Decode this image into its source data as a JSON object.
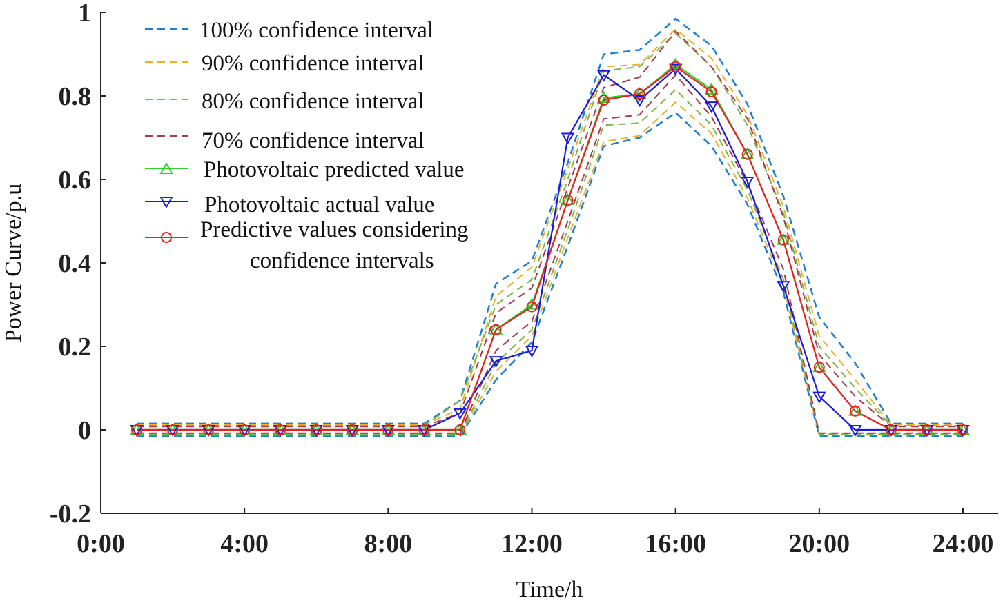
{
  "chart_data": {
    "type": "line",
    "title": "",
    "xlabel": "Time/h",
    "ylabel": "Power Curve/p.u",
    "xlim": [
      0,
      24
    ],
    "ylim": [
      -0.2,
      1
    ],
    "x_ticks": [
      0,
      4,
      8,
      12,
      16,
      20,
      24
    ],
    "x_tick_labels": [
      "0:00",
      "4:00",
      "8:00",
      "12:00",
      "16:00",
      "20:00",
      "24:00"
    ],
    "y_ticks": [
      -0.2,
      0,
      0.2,
      0.4,
      0.6,
      0.8,
      1
    ],
    "y_tick_labels": [
      "-0.2",
      "0",
      "0.2",
      "0.4",
      "0.6",
      "0.8",
      "1"
    ],
    "grid": false,
    "legend_position": "top-left",
    "x": [
      1,
      2,
      3,
      4,
      5,
      6,
      7,
      8,
      9,
      10,
      11,
      12,
      13,
      14,
      15,
      16,
      17,
      18,
      19,
      20,
      21,
      22,
      23,
      24
    ],
    "series": [
      {
        "name": "100% confidence interval",
        "kind": "band",
        "style": "dashed",
        "color": "#1f7fcf",
        "upper": [
          0.015,
          0.015,
          0.015,
          0.015,
          0.015,
          0.015,
          0.015,
          0.015,
          0.015,
          0.07,
          0.35,
          0.405,
          0.64,
          0.9,
          0.91,
          0.985,
          0.92,
          0.78,
          0.56,
          0.27,
          0.16,
          0.015,
          0.015,
          0.015
        ],
        "lower": [
          -0.015,
          -0.015,
          -0.015,
          -0.015,
          -0.015,
          -0.015,
          -0.015,
          -0.015,
          -0.015,
          -0.015,
          0.12,
          0.21,
          0.44,
          0.68,
          0.7,
          0.76,
          0.68,
          0.54,
          0.33,
          -0.015,
          -0.015,
          -0.015,
          -0.015,
          -0.015
        ]
      },
      {
        "name": "90% confidence interval",
        "kind": "band",
        "style": "dashed",
        "color": "#e8b030",
        "upper": [
          0.012,
          0.012,
          0.012,
          0.012,
          0.012,
          0.012,
          0.012,
          0.012,
          0.012,
          0.05,
          0.32,
          0.39,
          0.625,
          0.87,
          0.875,
          0.96,
          0.89,
          0.755,
          0.535,
          0.225,
          0.12,
          0.012,
          0.012,
          0.012
        ],
        "lower": [
          -0.012,
          -0.012,
          -0.012,
          -0.012,
          -0.012,
          -0.012,
          -0.012,
          -0.012,
          -0.012,
          -0.012,
          0.14,
          0.225,
          0.46,
          0.69,
          0.705,
          0.785,
          0.71,
          0.555,
          0.345,
          -0.012,
          -0.012,
          -0.012,
          -0.012,
          -0.012
        ]
      },
      {
        "name": "80% confidence interval",
        "kind": "band",
        "style": "dashed",
        "color": "#7ab648",
        "upper": [
          0.01,
          0.01,
          0.01,
          0.01,
          0.01,
          0.01,
          0.01,
          0.01,
          0.01,
          0.07,
          0.3,
          0.36,
          0.6,
          0.86,
          0.87,
          0.95,
          0.87,
          0.73,
          0.52,
          0.2,
          0.1,
          0.01,
          0.01,
          0.01
        ],
        "lower": [
          -0.01,
          -0.01,
          -0.01,
          -0.01,
          -0.01,
          -0.01,
          -0.01,
          -0.01,
          -0.01,
          -0.01,
          0.16,
          0.24,
          0.48,
          0.73,
          0.735,
          0.815,
          0.73,
          0.575,
          0.36,
          -0.01,
          -0.01,
          -0.01,
          -0.01,
          -0.01
        ]
      },
      {
        "name": "70% confidence interval",
        "kind": "band",
        "style": "dashed",
        "color": "#a83a4e",
        "upper": [
          0.008,
          0.008,
          0.008,
          0.008,
          0.008,
          0.008,
          0.008,
          0.008,
          0.008,
          0.04,
          0.28,
          0.34,
          0.58,
          0.82,
          0.845,
          0.955,
          0.87,
          0.745,
          0.51,
          0.18,
          0.08,
          0.008,
          0.008,
          0.008
        ],
        "lower": [
          -0.008,
          -0.008,
          -0.008,
          -0.008,
          -0.008,
          -0.008,
          -0.008,
          -0.008,
          -0.008,
          -0.008,
          0.19,
          0.26,
          0.5,
          0.745,
          0.755,
          0.85,
          0.75,
          0.59,
          0.385,
          -0.008,
          -0.008,
          -0.008,
          -0.008,
          -0.008
        ]
      },
      {
        "name": "Photovoltaic predicted value",
        "kind": "line",
        "marker": "triangle-up",
        "color": "#2ad22a",
        "values": [
          0,
          0,
          0,
          0,
          0,
          0,
          0,
          0,
          0,
          0,
          0.24,
          0.3,
          0.55,
          0.795,
          0.805,
          0.875,
          0.815,
          0.66,
          0.455,
          0.15,
          0.045,
          0,
          0,
          0
        ]
      },
      {
        "name": "Photovoltaic actual value",
        "kind": "line",
        "marker": "triangle-down",
        "color": "#1a1adb",
        "values": [
          0,
          0,
          0,
          0,
          0,
          0,
          0,
          0,
          0,
          0.04,
          0.165,
          0.19,
          0.7,
          0.85,
          0.79,
          0.865,
          0.775,
          0.595,
          0.345,
          0.08,
          0,
          0,
          0,
          0
        ]
      },
      {
        "name": "Predictive values considering confidence intervals",
        "kind": "line",
        "marker": "circle",
        "color": "#e82020",
        "values": [
          0,
          0,
          0,
          0,
          0,
          0,
          0,
          0,
          0,
          0,
          0.24,
          0.295,
          0.55,
          0.79,
          0.805,
          0.87,
          0.81,
          0.66,
          0.455,
          0.15,
          0.045,
          0,
          0,
          0
        ]
      }
    ],
    "legend": [
      {
        "label": "100% confidence interval"
      },
      {
        "label": "90% confidence interval"
      },
      {
        "label": "80% confidence interval"
      },
      {
        "label": "70% confidence interval"
      },
      {
        "label": "Photovoltaic predicted value"
      },
      {
        "label": "Photovoltaic actual value"
      },
      {
        "label_line1": "Predictive values considering",
        "label_line2": "confidence intervals"
      }
    ]
  }
}
